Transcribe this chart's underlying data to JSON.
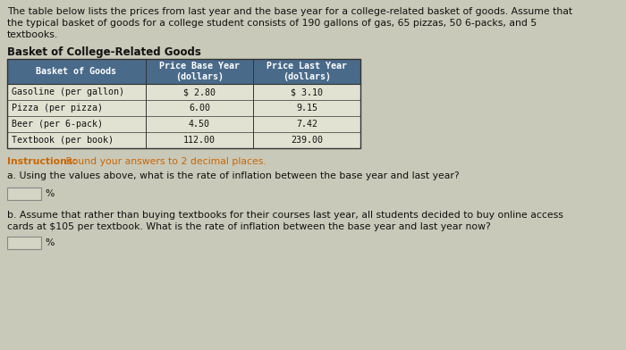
{
  "intro_text_line1": "The table below lists the prices from last year and the base year for a college-related basket of goods. Assume that",
  "intro_text_line2": "the typical basket of goods for a college student consists of 190 gallons of gas, 65 pizzas, 50 6-packs, and 5",
  "intro_text_line3": "textbooks.",
  "table_title": "Basket of College-Related Goods",
  "col_headers": [
    "Basket of Goods",
    "Price Base Year\n(dollars)",
    "Price Last Year\n(dollars)"
  ],
  "rows": [
    [
      "Gasoline (per gallon)",
      "$ 2.80",
      "$ 3.10"
    ],
    [
      "Pizza (per pizza)",
      "6.00",
      "9.15"
    ],
    [
      "Beer (per 6-pack)",
      "4.50",
      "7.42"
    ],
    [
      "Textbook (per book)",
      "112.00",
      "239.00"
    ]
  ],
  "instructions_bold": "Instructions:",
  "instructions_rest": " Round your answers to 2 decimal places.",
  "question_a": "a. Using the values above, what is the rate of inflation between the base year and last year?",
  "question_b_line1": "b. Assume that rather than buying textbooks for their courses last year, all students decided to buy online access",
  "question_b_line2": "cards at $105 per textbook. What is the rate of inflation between the base year and last year now?",
  "answer_box_label": "%",
  "bg_color": "#c9c9b9",
  "table_header_bg": "#4a6a8a",
  "table_header_text": "#ffffff",
  "table_border_color": "#333333",
  "table_row_bg": "#e2e2d2",
  "instructions_color": "#cc6600",
  "text_color": "#111111",
  "answer_box_bg": "#d5d5c5",
  "answer_box_border": "#888888"
}
